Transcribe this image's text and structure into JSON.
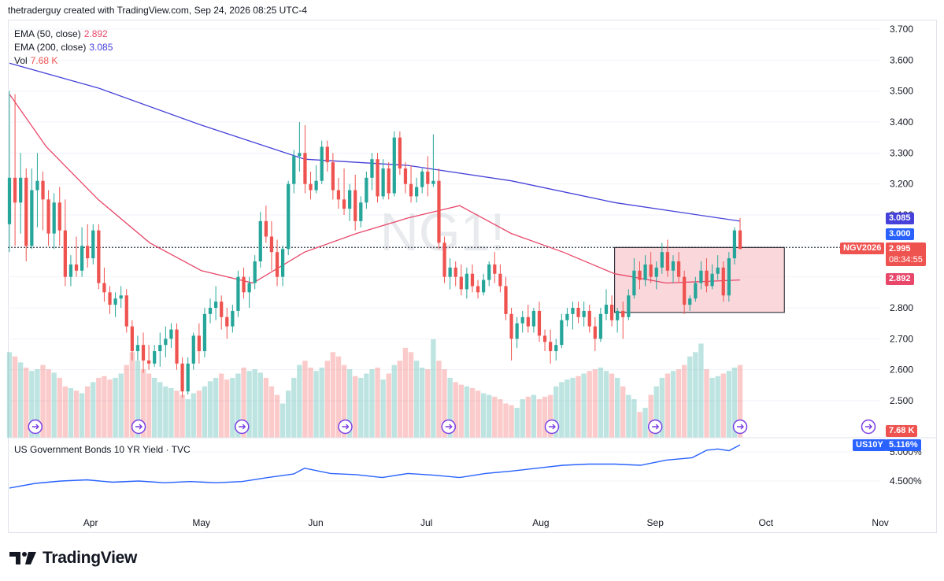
{
  "header": {
    "attribution": "thetraderguy created with TradingView.com, Sep 24, 2026 08:25 UTC-4"
  },
  "main_pane": {
    "watermark": "NG1!",
    "legend": [
      {
        "label": "EMA (50, close)",
        "value": "2.892",
        "color": "#e8476a"
      },
      {
        "label": "EMA (200, close)",
        "value": "3.085",
        "color": "#4641d9"
      },
      {
        "label": "Vol",
        "value": "7.68 K",
        "color": "#ef5350"
      }
    ],
    "price_ticks": [
      "3.700",
      "3.600",
      "3.500",
      "3.400",
      "3.300",
      "3.200",
      "3.100",
      "3.000",
      "2.900",
      "2.800",
      "2.700",
      "2.600",
      "2.500"
    ],
    "badges": {
      "ema200": "3.085",
      "level": "3.000",
      "symbol": "NGV2026",
      "last_price": "2.995",
      "countdown": "08:34:55",
      "ema50": "2.892",
      "volume": "7.68 K"
    }
  },
  "lower_pane": {
    "title": "US Government Bonds 10 YR Yield · TVC",
    "ticks": [
      "5.000%",
      "4.500%"
    ],
    "badge_symbol": "US10Y",
    "badge_value": "5.116%"
  },
  "time_axis": [
    "Apr",
    "May",
    "Jun",
    "Jul",
    "Aug",
    "Sep",
    "Oct",
    "Nov"
  ],
  "colors": {
    "up": "#26a69a",
    "down": "#ef5350",
    "ema50": "#e8476a",
    "ema200": "#4641d9",
    "yield": "#2962ff",
    "box": "#f7c9cf"
  },
  "footer": {
    "brand": "TradingView"
  },
  "chart_data": {
    "type": "candlestick",
    "symbol": "NG1!",
    "contract": "NGV2026",
    "x_range": [
      "2026-03-10",
      "2026-09-24"
    ],
    "ylim": [
      2.45,
      3.72
    ],
    "candles": [
      {
        "o": 3.07,
        "h": 3.5,
        "l": 2.98,
        "c": 3.22
      },
      {
        "o": 3.22,
        "h": 3.49,
        "l": 3.0,
        "c": 3.14
      },
      {
        "o": 3.14,
        "h": 3.3,
        "l": 3.04,
        "c": 3.22
      },
      {
        "o": 3.22,
        "h": 3.25,
        "l": 2.95,
        "c": 3.0
      },
      {
        "o": 3.0,
        "h": 3.25,
        "l": 2.99,
        "c": 3.18
      },
      {
        "o": 3.18,
        "h": 3.3,
        "l": 3.06,
        "c": 3.21
      },
      {
        "o": 3.21,
        "h": 3.24,
        "l": 3.05,
        "c": 3.15
      },
      {
        "o": 3.15,
        "h": 3.18,
        "l": 3.0,
        "c": 3.04
      },
      {
        "o": 3.04,
        "h": 3.17,
        "l": 2.99,
        "c": 3.14
      },
      {
        "o": 3.14,
        "h": 3.19,
        "l": 3.0,
        "c": 3.05
      },
      {
        "o": 3.05,
        "h": 3.15,
        "l": 2.87,
        "c": 2.9
      },
      {
        "o": 2.9,
        "h": 2.97,
        "l": 2.87,
        "c": 2.94
      },
      {
        "o": 2.94,
        "h": 3.03,
        "l": 2.9,
        "c": 2.92
      },
      {
        "o": 2.92,
        "h": 3.06,
        "l": 2.9,
        "c": 3.0
      },
      {
        "o": 3.0,
        "h": 3.07,
        "l": 2.93,
        "c": 2.96
      },
      {
        "o": 2.96,
        "h": 3.07,
        "l": 2.94,
        "c": 3.05
      },
      {
        "o": 3.05,
        "h": 3.07,
        "l": 2.86,
        "c": 2.88
      },
      {
        "o": 2.88,
        "h": 2.93,
        "l": 2.82,
        "c": 2.85
      },
      {
        "o": 2.85,
        "h": 2.87,
        "l": 2.78,
        "c": 2.81
      },
      {
        "o": 2.81,
        "h": 2.85,
        "l": 2.77,
        "c": 2.83
      },
      {
        "o": 2.83,
        "h": 2.87,
        "l": 2.8,
        "c": 2.84
      },
      {
        "o": 2.84,
        "h": 2.86,
        "l": 2.72,
        "c": 2.74
      },
      {
        "o": 2.74,
        "h": 2.76,
        "l": 2.63,
        "c": 2.66
      },
      {
        "o": 2.66,
        "h": 2.71,
        "l": 2.63,
        "c": 2.68
      },
      {
        "o": 2.68,
        "h": 2.72,
        "l": 2.59,
        "c": 2.63
      },
      {
        "o": 2.63,
        "h": 2.68,
        "l": 2.6,
        "c": 2.62
      },
      {
        "o": 2.62,
        "h": 2.68,
        "l": 2.61,
        "c": 2.66
      },
      {
        "o": 2.66,
        "h": 2.72,
        "l": 2.61,
        "c": 2.68
      },
      {
        "o": 2.68,
        "h": 2.74,
        "l": 2.64,
        "c": 2.7
      },
      {
        "o": 2.7,
        "h": 2.75,
        "l": 2.67,
        "c": 2.73
      },
      {
        "o": 2.73,
        "h": 2.75,
        "l": 2.6,
        "c": 2.62
      },
      {
        "o": 2.62,
        "h": 2.64,
        "l": 2.51,
        "c": 2.53
      },
      {
        "o": 2.53,
        "h": 2.64,
        "l": 2.52,
        "c": 2.62
      },
      {
        "o": 2.62,
        "h": 2.72,
        "l": 2.6,
        "c": 2.71
      },
      {
        "o": 2.71,
        "h": 2.75,
        "l": 2.62,
        "c": 2.66
      },
      {
        "o": 2.66,
        "h": 2.8,
        "l": 2.64,
        "c": 2.78
      },
      {
        "o": 2.78,
        "h": 2.83,
        "l": 2.75,
        "c": 2.8
      },
      {
        "o": 2.8,
        "h": 2.87,
        "l": 2.76,
        "c": 2.82
      },
      {
        "o": 2.82,
        "h": 2.84,
        "l": 2.73,
        "c": 2.77
      },
      {
        "o": 2.77,
        "h": 2.8,
        "l": 2.7,
        "c": 2.74
      },
      {
        "o": 2.74,
        "h": 2.81,
        "l": 2.72,
        "c": 2.79
      },
      {
        "o": 2.79,
        "h": 2.92,
        "l": 2.77,
        "c": 2.9
      },
      {
        "o": 2.9,
        "h": 2.93,
        "l": 2.83,
        "c": 2.85
      },
      {
        "o": 2.85,
        "h": 2.9,
        "l": 2.8,
        "c": 2.88
      },
      {
        "o": 2.88,
        "h": 2.97,
        "l": 2.86,
        "c": 2.95
      },
      {
        "o": 2.95,
        "h": 3.11,
        "l": 2.93,
        "c": 3.08
      },
      {
        "o": 3.08,
        "h": 3.13,
        "l": 3.01,
        "c": 3.03
      },
      {
        "o": 3.03,
        "h": 3.08,
        "l": 2.92,
        "c": 2.98
      },
      {
        "o": 2.98,
        "h": 3.02,
        "l": 2.87,
        "c": 2.9
      },
      {
        "o": 2.9,
        "h": 3.0,
        "l": 2.87,
        "c": 2.99
      },
      {
        "o": 2.99,
        "h": 3.21,
        "l": 2.97,
        "c": 3.2
      },
      {
        "o": 3.2,
        "h": 3.31,
        "l": 3.17,
        "c": 3.29
      },
      {
        "o": 3.29,
        "h": 3.4,
        "l": 3.24,
        "c": 3.3
      },
      {
        "o": 3.3,
        "h": 3.39,
        "l": 3.17,
        "c": 3.2
      },
      {
        "o": 3.2,
        "h": 3.24,
        "l": 3.15,
        "c": 3.18
      },
      {
        "o": 3.18,
        "h": 3.26,
        "l": 3.17,
        "c": 3.21
      },
      {
        "o": 3.21,
        "h": 3.34,
        "l": 3.2,
        "c": 3.32
      },
      {
        "o": 3.32,
        "h": 3.34,
        "l": 3.24,
        "c": 3.27
      },
      {
        "o": 3.27,
        "h": 3.3,
        "l": 3.15,
        "c": 3.18
      },
      {
        "o": 3.18,
        "h": 3.22,
        "l": 3.12,
        "c": 3.15
      },
      {
        "o": 3.15,
        "h": 3.25,
        "l": 3.1,
        "c": 3.12
      },
      {
        "o": 3.12,
        "h": 3.2,
        "l": 3.08,
        "c": 3.18
      },
      {
        "o": 3.18,
        "h": 3.23,
        "l": 3.05,
        "c": 3.08
      },
      {
        "o": 3.08,
        "h": 3.16,
        "l": 3.06,
        "c": 3.14
      },
      {
        "o": 3.14,
        "h": 3.24,
        "l": 3.12,
        "c": 3.22
      },
      {
        "o": 3.22,
        "h": 3.3,
        "l": 3.18,
        "c": 3.28
      },
      {
        "o": 3.28,
        "h": 3.3,
        "l": 3.14,
        "c": 3.16
      },
      {
        "o": 3.16,
        "h": 3.28,
        "l": 3.15,
        "c": 3.25
      },
      {
        "o": 3.25,
        "h": 3.27,
        "l": 3.15,
        "c": 3.17
      },
      {
        "o": 3.17,
        "h": 3.37,
        "l": 3.16,
        "c": 3.35
      },
      {
        "o": 3.35,
        "h": 3.37,
        "l": 3.23,
        "c": 3.25
      },
      {
        "o": 3.25,
        "h": 3.27,
        "l": 3.17,
        "c": 3.2
      },
      {
        "o": 3.2,
        "h": 3.26,
        "l": 3.14,
        "c": 3.16
      },
      {
        "o": 3.16,
        "h": 3.22,
        "l": 3.14,
        "c": 3.19
      },
      {
        "o": 3.19,
        "h": 3.25,
        "l": 3.17,
        "c": 3.24
      },
      {
        "o": 3.24,
        "h": 3.29,
        "l": 3.16,
        "c": 3.2
      },
      {
        "o": 3.2,
        "h": 3.36,
        "l": 3.19,
        "c": 3.21
      },
      {
        "o": 3.21,
        "h": 3.25,
        "l": 2.99,
        "c": 3.01
      },
      {
        "o": 3.01,
        "h": 3.03,
        "l": 2.88,
        "c": 2.9
      },
      {
        "o": 2.9,
        "h": 2.96,
        "l": 2.86,
        "c": 2.93
      },
      {
        "o": 2.93,
        "h": 2.95,
        "l": 2.87,
        "c": 2.9
      },
      {
        "o": 2.9,
        "h": 2.94,
        "l": 2.84,
        "c": 2.86
      },
      {
        "o": 2.86,
        "h": 2.93,
        "l": 2.83,
        "c": 2.91
      },
      {
        "o": 2.91,
        "h": 2.94,
        "l": 2.85,
        "c": 2.87
      },
      {
        "o": 2.87,
        "h": 2.89,
        "l": 2.83,
        "c": 2.85
      },
      {
        "o": 2.85,
        "h": 2.91,
        "l": 2.84,
        "c": 2.89
      },
      {
        "o": 2.89,
        "h": 2.95,
        "l": 2.87,
        "c": 2.94
      },
      {
        "o": 2.94,
        "h": 2.98,
        "l": 2.88,
        "c": 2.91
      },
      {
        "o": 2.91,
        "h": 2.94,
        "l": 2.85,
        "c": 2.87
      },
      {
        "o": 2.87,
        "h": 2.9,
        "l": 2.76,
        "c": 2.78
      },
      {
        "o": 2.78,
        "h": 2.8,
        "l": 2.63,
        "c": 2.7
      },
      {
        "o": 2.7,
        "h": 2.77,
        "l": 2.67,
        "c": 2.75
      },
      {
        "o": 2.75,
        "h": 2.79,
        "l": 2.72,
        "c": 2.77
      },
      {
        "o": 2.77,
        "h": 2.81,
        "l": 2.72,
        "c": 2.74
      },
      {
        "o": 2.74,
        "h": 2.8,
        "l": 2.72,
        "c": 2.79
      },
      {
        "o": 2.79,
        "h": 2.82,
        "l": 2.69,
        "c": 2.71
      },
      {
        "o": 2.71,
        "h": 2.73,
        "l": 2.66,
        "c": 2.69
      },
      {
        "o": 2.69,
        "h": 2.73,
        "l": 2.62,
        "c": 2.66
      },
      {
        "o": 2.66,
        "h": 2.7,
        "l": 2.63,
        "c": 2.68
      },
      {
        "o": 2.68,
        "h": 2.78,
        "l": 2.67,
        "c": 2.76
      },
      {
        "o": 2.76,
        "h": 2.8,
        "l": 2.74,
        "c": 2.78
      },
      {
        "o": 2.78,
        "h": 2.82,
        "l": 2.73,
        "c": 2.8
      },
      {
        "o": 2.8,
        "h": 2.82,
        "l": 2.75,
        "c": 2.77
      },
      {
        "o": 2.77,
        "h": 2.82,
        "l": 2.74,
        "c": 2.79
      },
      {
        "o": 2.79,
        "h": 2.81,
        "l": 2.72,
        "c": 2.74
      },
      {
        "o": 2.74,
        "h": 2.77,
        "l": 2.66,
        "c": 2.7
      },
      {
        "o": 2.7,
        "h": 2.8,
        "l": 2.69,
        "c": 2.78
      },
      {
        "o": 2.78,
        "h": 2.86,
        "l": 2.76,
        "c": 2.81
      },
      {
        "o": 2.81,
        "h": 2.84,
        "l": 2.74,
        "c": 2.76
      },
      {
        "o": 2.76,
        "h": 2.8,
        "l": 2.72,
        "c": 2.79
      },
      {
        "o": 2.79,
        "h": 2.82,
        "l": 2.7,
        "c": 2.77
      },
      {
        "o": 2.77,
        "h": 2.86,
        "l": 2.76,
        "c": 2.84
      },
      {
        "o": 2.84,
        "h": 2.96,
        "l": 2.83,
        "c": 2.92
      },
      {
        "o": 2.92,
        "h": 2.95,
        "l": 2.86,
        "c": 2.89
      },
      {
        "o": 2.89,
        "h": 2.97,
        "l": 2.87,
        "c": 2.94
      },
      {
        "o": 2.94,
        "h": 2.98,
        "l": 2.88,
        "c": 2.9
      },
      {
        "o": 2.9,
        "h": 2.95,
        "l": 2.86,
        "c": 2.93
      },
      {
        "o": 2.93,
        "h": 3.01,
        "l": 2.91,
        "c": 2.98
      },
      {
        "o": 2.98,
        "h": 3.02,
        "l": 2.9,
        "c": 2.92
      },
      {
        "o": 2.92,
        "h": 2.97,
        "l": 2.88,
        "c": 2.95
      },
      {
        "o": 2.95,
        "h": 2.98,
        "l": 2.88,
        "c": 2.9
      },
      {
        "o": 2.9,
        "h": 2.92,
        "l": 2.78,
        "c": 2.81
      },
      {
        "o": 2.81,
        "h": 2.84,
        "l": 2.79,
        "c": 2.83
      },
      {
        "o": 2.83,
        "h": 2.9,
        "l": 2.82,
        "c": 2.88
      },
      {
        "o": 2.88,
        "h": 2.95,
        "l": 2.86,
        "c": 2.92
      },
      {
        "o": 2.92,
        "h": 2.96,
        "l": 2.85,
        "c": 2.87
      },
      {
        "o": 2.87,
        "h": 2.94,
        "l": 2.86,
        "c": 2.91
      },
      {
        "o": 2.91,
        "h": 2.97,
        "l": 2.89,
        "c": 2.93
      },
      {
        "o": 2.93,
        "h": 2.95,
        "l": 2.82,
        "c": 2.84
      },
      {
        "o": 2.84,
        "h": 2.98,
        "l": 2.82,
        "c": 2.96
      },
      {
        "o": 2.96,
        "h": 3.06,
        "l": 2.94,
        "c": 3.05
      },
      {
        "o": 3.05,
        "h": 3.09,
        "l": 2.99,
        "c": 2.99
      }
    ],
    "ema50": [
      {
        "x": "2026-03-10",
        "y": 3.49
      },
      {
        "x": "2026-03-20",
        "y": 3.32
      },
      {
        "x": "2026-04-03",
        "y": 3.15
      },
      {
        "x": "2026-04-17",
        "y": 3.01
      },
      {
        "x": "2026-05-01",
        "y": 2.92
      },
      {
        "x": "2026-05-15",
        "y": 2.88
      },
      {
        "x": "2026-05-29",
        "y": 2.98
      },
      {
        "x": "2026-06-12",
        "y": 3.04
      },
      {
        "x": "2026-06-26",
        "y": 3.09
      },
      {
        "x": "2026-07-10",
        "y": 3.13
      },
      {
        "x": "2026-07-24",
        "y": 3.04
      },
      {
        "x": "2026-08-07",
        "y": 2.98
      },
      {
        "x": "2026-08-21",
        "y": 2.91
      },
      {
        "x": "2026-09-04",
        "y": 2.88
      },
      {
        "x": "2026-09-24",
        "y": 2.89
      }
    ],
    "ema200": [
      {
        "x": "2026-03-10",
        "y": 3.59
      },
      {
        "x": "2026-04-03",
        "y": 3.51
      },
      {
        "x": "2026-05-01",
        "y": 3.39
      },
      {
        "x": "2026-05-29",
        "y": 3.28
      },
      {
        "x": "2026-06-26",
        "y": 3.26
      },
      {
        "x": "2026-07-24",
        "y": 3.21
      },
      {
        "x": "2026-08-21",
        "y": 3.14
      },
      {
        "x": "2026-09-24",
        "y": 3.08
      }
    ],
    "volume": [
      1.0,
      0.95,
      0.88,
      0.82,
      0.78,
      0.8,
      0.85,
      0.8,
      0.76,
      0.7,
      0.6,
      0.58,
      0.55,
      0.52,
      0.6,
      0.65,
      0.7,
      0.72,
      0.68,
      0.7,
      0.75,
      0.85,
      1.0,
      0.9,
      0.8,
      0.75,
      0.7,
      0.65,
      0.6,
      0.58,
      0.55,
      0.5,
      0.45,
      0.52,
      0.55,
      0.6,
      0.66,
      0.7,
      0.75,
      0.68,
      0.7,
      0.75,
      0.82,
      0.78,
      0.8,
      0.76,
      0.7,
      0.6,
      0.5,
      0.4,
      0.55,
      0.7,
      0.85,
      0.9,
      0.82,
      0.78,
      0.82,
      0.9,
      1.0,
      0.95,
      0.85,
      0.8,
      0.72,
      0.7,
      0.75,
      0.8,
      0.82,
      0.68,
      0.75,
      0.85,
      0.9,
      1.05,
      1.0,
      0.9,
      0.82,
      0.8,
      1.15,
      0.9,
      0.8,
      0.7,
      0.65,
      0.62,
      0.6,
      0.58,
      0.55,
      0.52,
      0.5,
      0.48,
      0.45,
      0.4,
      0.38,
      0.35,
      0.45,
      0.48,
      0.5,
      0.45,
      0.48,
      0.5,
      0.6,
      0.65,
      0.68,
      0.7,
      0.72,
      0.75,
      0.78,
      0.8,
      0.82,
      0.78,
      0.75,
      0.7,
      0.6,
      0.5,
      0.45,
      0.3,
      0.35,
      0.5,
      0.6,
      0.7,
      0.75,
      0.78,
      0.8,
      0.85,
      0.95,
      1.0,
      1.1,
      0.8,
      0.7,
      0.72,
      0.75,
      0.78,
      0.82,
      0.85,
      0.9,
      0.6,
      0.4,
      0.2
    ],
    "trading_range_box": {
      "from": "2026-08-21",
      "to": "2026-10-06",
      "top": 2.995,
      "bottom": 2.785
    },
    "horizontal_line": 2.995,
    "events_at": [
      "2026-03-17",
      "2026-04-14",
      "2026-05-12",
      "2026-06-09",
      "2026-07-07",
      "2026-08-04",
      "2026-09-01",
      "2026-09-24"
    ]
  },
  "yield_data": {
    "name": "US Government Bonds 10 YR Yield",
    "ylim": [
      4.2,
      5.2
    ],
    "points": [
      {
        "x": "2026-03-10",
        "y": 4.38
      },
      {
        "x": "2026-03-17",
        "y": 4.46
      },
      {
        "x": "2026-03-24",
        "y": 4.5
      },
      {
        "x": "2026-03-31",
        "y": 4.52
      },
      {
        "x": "2026-04-07",
        "y": 4.48
      },
      {
        "x": "2026-04-14",
        "y": 4.5
      },
      {
        "x": "2026-04-21",
        "y": 4.47
      },
      {
        "x": "2026-04-28",
        "y": 4.49
      },
      {
        "x": "2026-05-05",
        "y": 4.47
      },
      {
        "x": "2026-05-12",
        "y": 4.49
      },
      {
        "x": "2026-05-19",
        "y": 4.56
      },
      {
        "x": "2026-05-26",
        "y": 4.62
      },
      {
        "x": "2026-05-29",
        "y": 4.72
      },
      {
        "x": "2026-06-05",
        "y": 4.63
      },
      {
        "x": "2026-06-12",
        "y": 4.61
      },
      {
        "x": "2026-06-19",
        "y": 4.56
      },
      {
        "x": "2026-06-26",
        "y": 4.63
      },
      {
        "x": "2026-07-03",
        "y": 4.6
      },
      {
        "x": "2026-07-10",
        "y": 4.56
      },
      {
        "x": "2026-07-17",
        "y": 4.63
      },
      {
        "x": "2026-07-24",
        "y": 4.67
      },
      {
        "x": "2026-07-31",
        "y": 4.72
      },
      {
        "x": "2026-08-07",
        "y": 4.77
      },
      {
        "x": "2026-08-14",
        "y": 4.79
      },
      {
        "x": "2026-08-21",
        "y": 4.79
      },
      {
        "x": "2026-08-28",
        "y": 4.77
      },
      {
        "x": "2026-09-04",
        "y": 4.86
      },
      {
        "x": "2026-09-11",
        "y": 4.9
      },
      {
        "x": "2026-09-15",
        "y": 5.03
      },
      {
        "x": "2026-09-18",
        "y": 5.05
      },
      {
        "x": "2026-09-21",
        "y": 5.02
      },
      {
        "x": "2026-09-24",
        "y": 5.12
      }
    ]
  }
}
